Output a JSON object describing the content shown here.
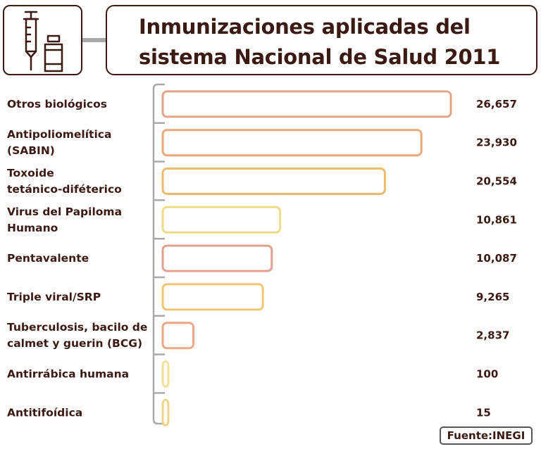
{
  "header": {
    "title_line1": "Inmunizaciones aplicadas del",
    "title_line2": "sistema Nacional de Salud 2011",
    "icon": "syringe-vial-icon"
  },
  "source": "Fuente:INEGI",
  "colors": {
    "text": "#3a1a12",
    "axis": "#a9a9a9",
    "bar_fill": "#ffffff"
  },
  "chart_data": {
    "type": "bar",
    "orientation": "horizontal",
    "title": "Inmunizaciones aplicadas del sistema Nacional de Salud 2011",
    "categories": [
      [
        "Otros biológicos"
      ],
      [
        "Antipoliomelítica",
        "(SABIN)"
      ],
      [
        "Toxoide",
        "tetánico-diféterico"
      ],
      [
        "Virus del Papiloma",
        "Humano"
      ],
      [
        "Pentavalente"
      ],
      [
        "Triple viral/SRP"
      ],
      [
        "Tuberculosis, bacilo de",
        "calmet  y guerin (BCG)"
      ],
      [
        "Antirrábica humana"
      ],
      [
        "Antitifoídica"
      ]
    ],
    "values": [
      26657,
      23930,
      20554,
      10861,
      10087,
      9265,
      2837,
      100,
      15
    ],
    "value_labels": [
      "26,657",
      "23,930",
      "20,554",
      "10,861",
      "10,087",
      "9,265",
      "2,837",
      "100",
      "15"
    ],
    "bar_colors": [
      "#e3a48b",
      "#eaa979",
      "#ecbc6e",
      "#f1da86",
      "#e1a08d",
      "#efc672",
      "#e9a983",
      "#f5e09a",
      "#f0d488"
    ],
    "xlabel": "",
    "ylabel": "",
    "grid": false,
    "legend": "none"
  }
}
